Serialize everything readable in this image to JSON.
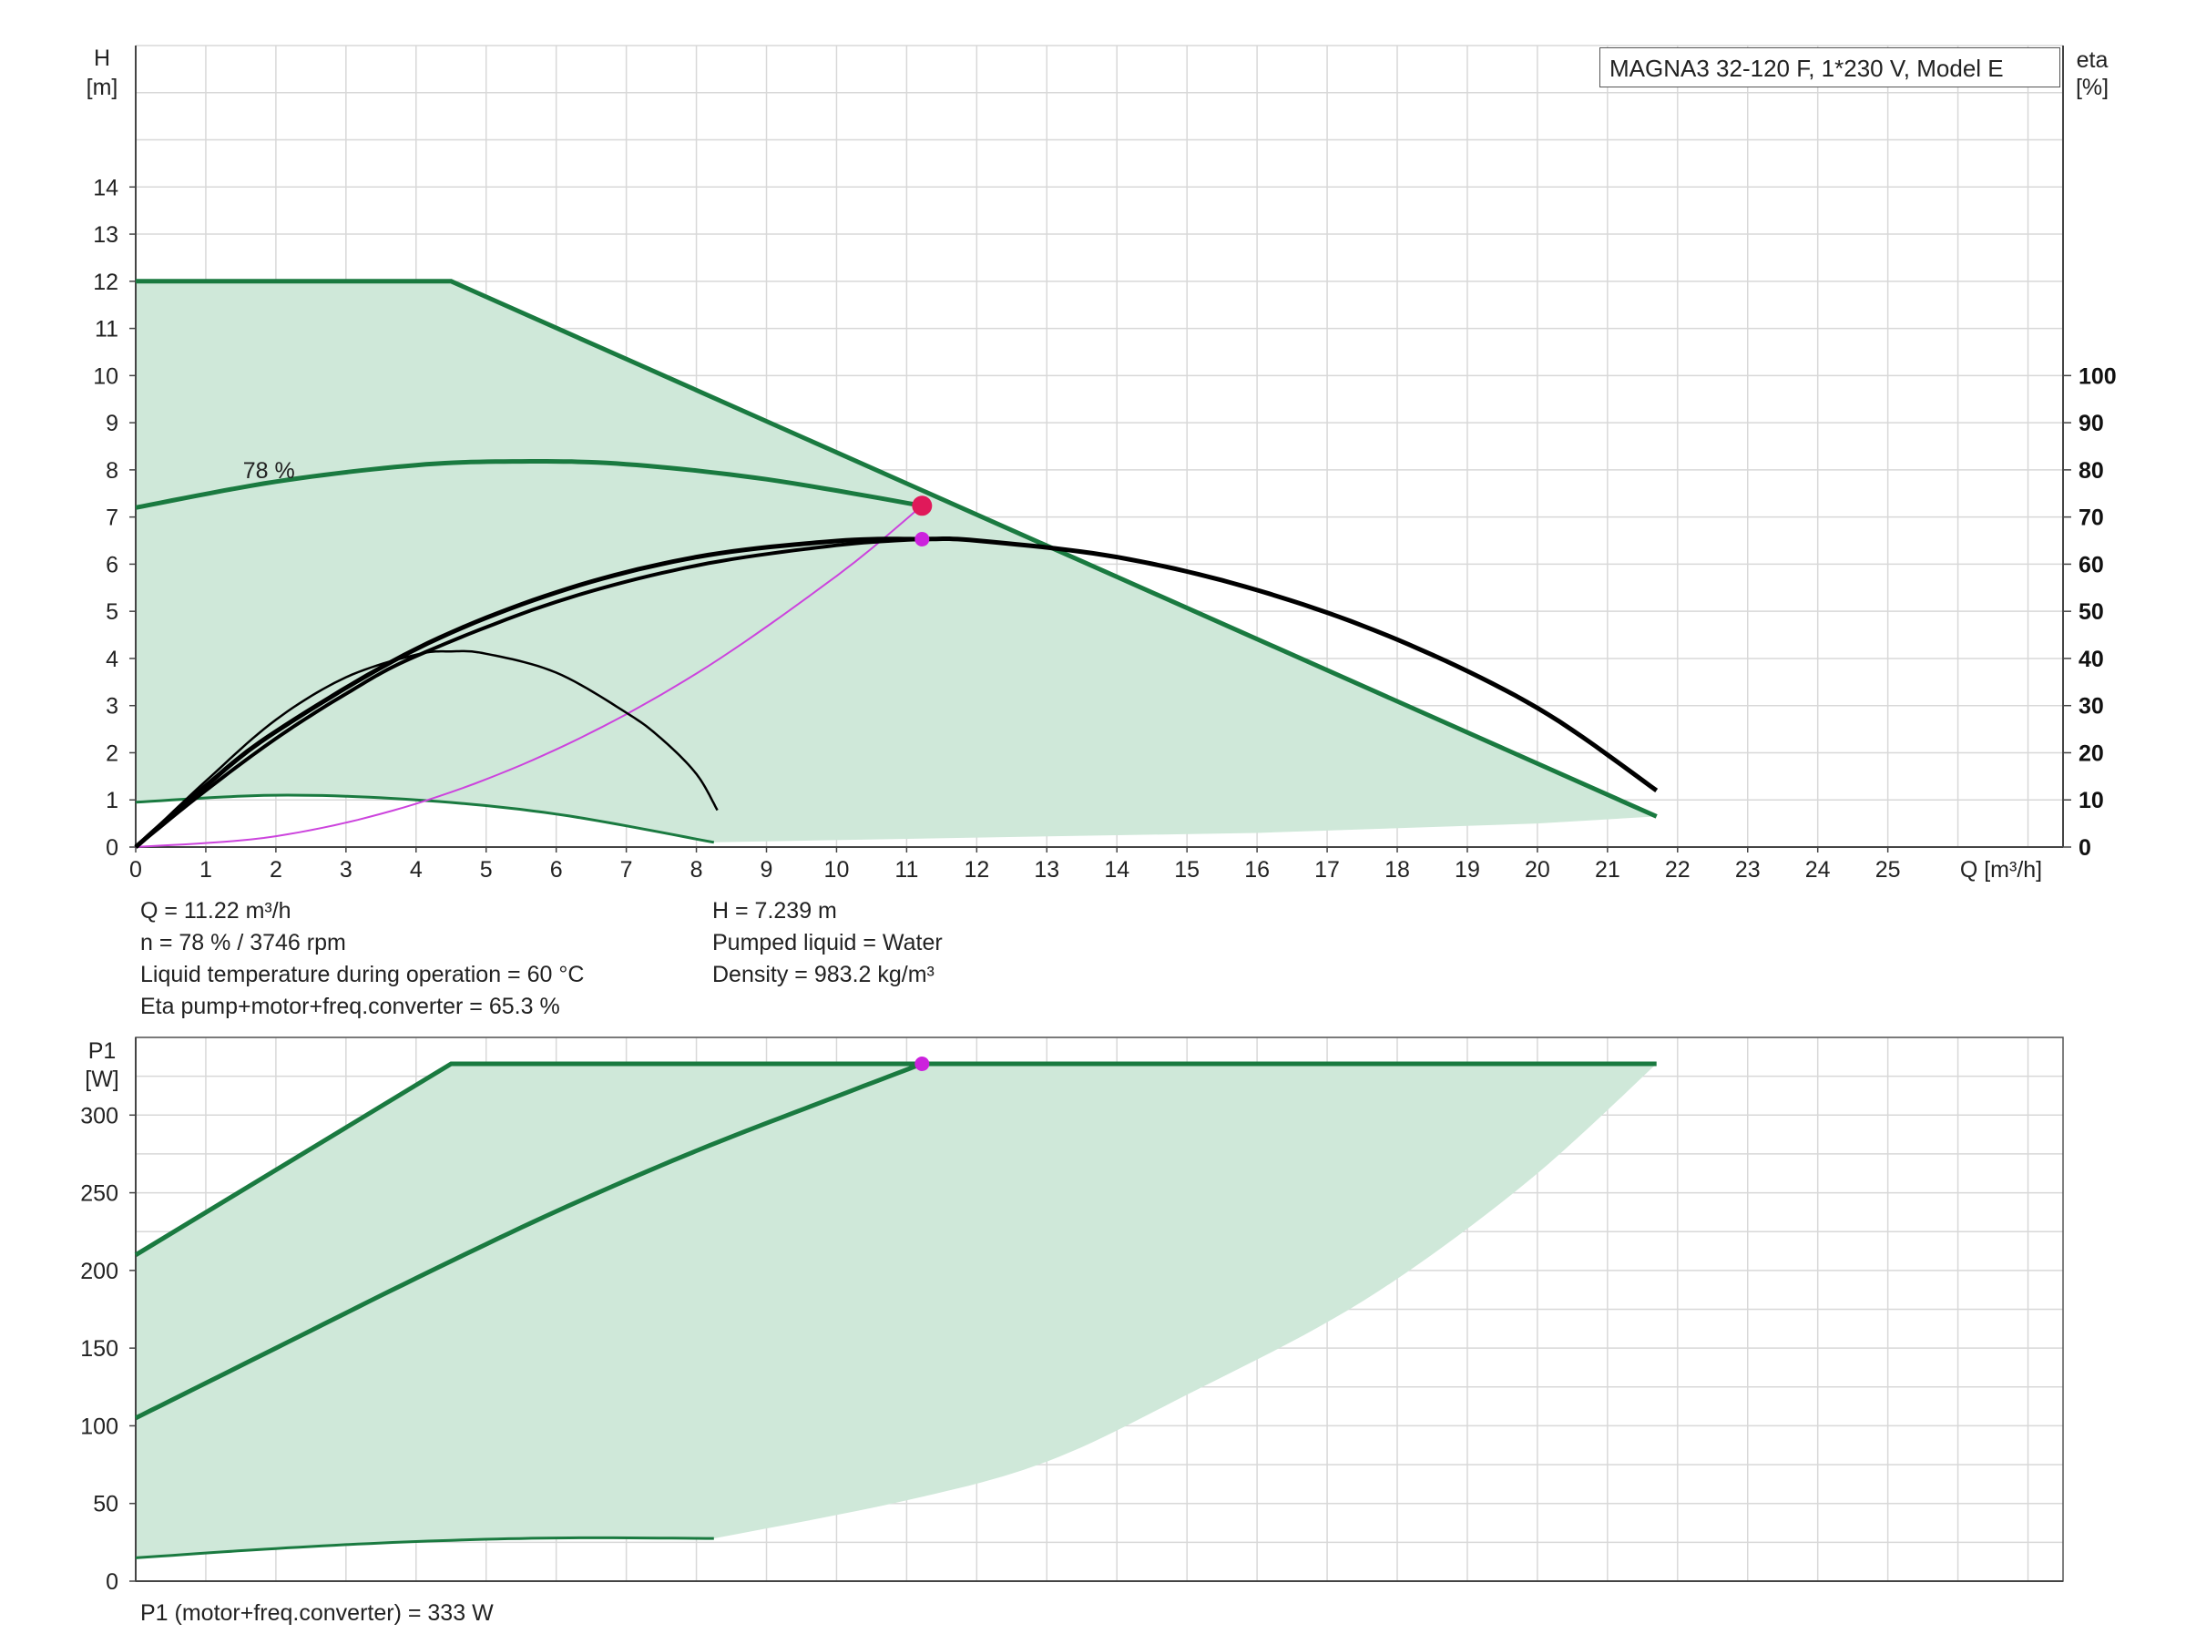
{
  "chart_data": [
    {
      "type": "line",
      "title": "MAGNA3 32-120 F, 1*230 V, Model E",
      "xlabel": "Q [m³/h]",
      "ylabel": "H\n[m]",
      "ylabel_right": "eta\n[%]",
      "xlim": [
        0,
        27.5
      ],
      "ylim": [
        0,
        17
      ],
      "ylim_right": [
        0,
        100
      ],
      "x_ticks": [
        "0",
        "1",
        "2",
        "3",
        "4",
        "5",
        "6",
        "7",
        "8",
        "9",
        "10",
        "11",
        "12",
        "13",
        "14",
        "15",
        "16",
        "17",
        "18",
        "19",
        "20",
        "21",
        "22",
        "23",
        "24",
        "25"
      ],
      "y_ticks": [
        "0",
        "1",
        "2",
        "3",
        "4",
        "5",
        "6",
        "7",
        "8",
        "9",
        "10",
        "11",
        "12",
        "13",
        "14"
      ],
      "y_ticks_right": [
        "0",
        "10",
        "20",
        "30",
        "40",
        "50",
        "60",
        "70",
        "80",
        "90",
        "100"
      ],
      "grid": true,
      "colors": {
        "curve": "#1a7a40",
        "fill": "#cfe8d9",
        "eta": "#000000",
        "system": "#cc44dd",
        "duty_point": "#e0195a",
        "eta_point": "#cc22dd"
      },
      "annotations": [
        {
          "text": "78 %",
          "x": 1.9,
          "y": 8.0
        }
      ],
      "series": [
        {
          "role": "max-curve",
          "x": [
            0,
            4.5,
            21.7
          ],
          "y": [
            12,
            12,
            0.65
          ]
        },
        {
          "role": "duty-speed-curve",
          "x": [
            0,
            2,
            4,
            5.5,
            7,
            9,
            11.22
          ],
          "y": [
            7.2,
            7.75,
            8.1,
            8.18,
            8.12,
            7.8,
            7.24
          ]
        },
        {
          "role": "min-curve",
          "x": [
            0,
            2,
            4,
            6,
            8.25
          ],
          "y": [
            0.95,
            1.1,
            1.0,
            0.7,
            0.1
          ]
        },
        {
          "role": "fill-lower-boundary",
          "x": [
            8.25,
            12,
            16,
            20,
            21.7
          ],
          "y": [
            0.1,
            0.2,
            0.3,
            0.5,
            0.65
          ]
        },
        {
          "role": "eta-max",
          "axis": "right",
          "x": [
            0,
            1,
            2,
            4,
            6,
            8,
            10,
            11.22,
            12,
            14,
            16,
            18,
            20,
            21.7
          ],
          "y": [
            0,
            13,
            24.5,
            42,
            54,
            61.5,
            64.9,
            65.3,
            65,
            61.5,
            54.5,
            44,
            29.5,
            12
          ]
        },
        {
          "role": "eta-duty",
          "axis": "right",
          "x": [
            0,
            1,
            2,
            3,
            4,
            6,
            8,
            10,
            11.22
          ],
          "y": [
            0,
            12,
            23,
            32.5,
            40.5,
            52,
            59.7,
            64,
            65.3
          ]
        },
        {
          "role": "eta-min",
          "axis": "right",
          "x": [
            0,
            1,
            2,
            3,
            4,
            4.5,
            5,
            6,
            7,
            7.5,
            8,
            8.3
          ],
          "y": [
            0,
            14,
            27,
            36,
            40.8,
            41.5,
            41,
            37,
            28.5,
            23,
            15.5,
            7.8
          ]
        },
        {
          "role": "system-curve",
          "x": [
            0,
            2,
            4,
            6,
            8,
            10,
            11.22
          ],
          "y": [
            0,
            0.23,
            0.92,
            2.07,
            3.68,
            5.75,
            7.24
          ]
        }
      ],
      "duty_point": {
        "x": 11.22,
        "y": 7.239,
        "eta": 65.3
      }
    },
    {
      "type": "line",
      "xlabel": "",
      "ylabel": "P1\n[W]",
      "xlim": [
        0,
        27.5
      ],
      "ylim": [
        0,
        350
      ],
      "y_ticks": [
        "0",
        "50",
        "100",
        "150",
        "200",
        "250",
        "300"
      ],
      "grid": true,
      "series": [
        {
          "role": "max-power",
          "x": [
            0,
            4.5,
            21.7
          ],
          "y": [
            210,
            333,
            333
          ]
        },
        {
          "role": "duty-power",
          "x": [
            0,
            2,
            4,
            6,
            8,
            10,
            11.22,
            21.7
          ],
          "y": [
            105,
            150,
            195,
            238,
            277,
            312,
            333,
            333
          ]
        },
        {
          "role": "min-power",
          "x": [
            0,
            2,
            4,
            6,
            8.25
          ],
          "y": [
            15,
            21,
            25.5,
            27.8,
            27.5
          ]
        },
        {
          "role": "fill-lower-boundary",
          "x": [
            8.25,
            11,
            13,
            15,
            17.5,
            19.8,
            21.7
          ],
          "y": [
            27.5,
            52,
            77,
            120,
            180,
            255,
            333
          ]
        }
      ],
      "duty_point": {
        "x": 11.22,
        "y": 333
      }
    }
  ],
  "info": {
    "left": [
      "Q = 11.22 m³/h",
      "n = 78 % / 3746 rpm",
      "Liquid temperature during operation = 60 °C",
      "Eta pump+motor+freq.converter = 65.3 %"
    ],
    "right": [
      "H = 7.239 m",
      "Pumped liquid = Water",
      "Density = 983.2 kg/m³"
    ],
    "bottom": "P1 (motor+freq.converter) = 333 W"
  }
}
